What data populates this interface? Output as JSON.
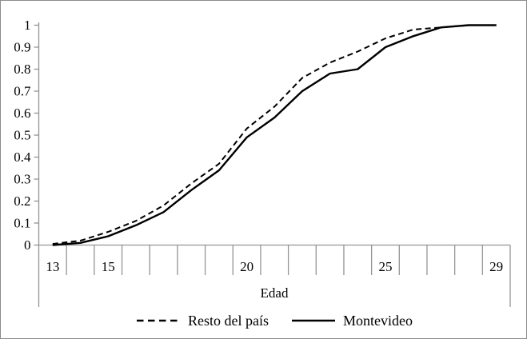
{
  "chart_data": {
    "type": "line",
    "title": "",
    "xlabel": "Edad",
    "ylabel": "",
    "x": [
      13,
      14,
      15,
      16,
      17,
      18,
      19,
      20,
      21,
      22,
      23,
      24,
      25,
      26,
      27,
      28,
      29
    ],
    "x_labeled_ticks": [
      13,
      15,
      20,
      25,
      29
    ],
    "xlim": [
      13,
      29
    ],
    "ylim": [
      0,
      1
    ],
    "y_ticks": [
      0,
      0.1,
      0.2,
      0.3,
      0.4,
      0.5,
      0.6,
      0.7,
      0.8,
      0.9,
      1
    ],
    "y_tick_labels": [
      "0",
      "0.1",
      "0.2",
      "0.3",
      "0.4",
      "0.5",
      "0.6",
      "0.7",
      "0.8",
      "0.9",
      "1"
    ],
    "grid": false,
    "legend_position": "bottom",
    "series": [
      {
        "name": "Resto del país",
        "style": "dashed",
        "values": [
          0.005,
          0.02,
          0.06,
          0.11,
          0.18,
          0.28,
          0.37,
          0.53,
          0.63,
          0.76,
          0.83,
          0.88,
          0.94,
          0.98,
          0.99,
          1.0,
          1.0
        ]
      },
      {
        "name": "Montevideo",
        "style": "solid",
        "values": [
          0.0,
          0.01,
          0.04,
          0.09,
          0.15,
          0.25,
          0.34,
          0.49,
          0.58,
          0.7,
          0.78,
          0.8,
          0.9,
          0.95,
          0.99,
          1.0,
          1.0
        ]
      }
    ],
    "colors": {
      "line": "#000000",
      "axis": "#959595",
      "text": "#000000",
      "background": "#ffffff"
    }
  }
}
